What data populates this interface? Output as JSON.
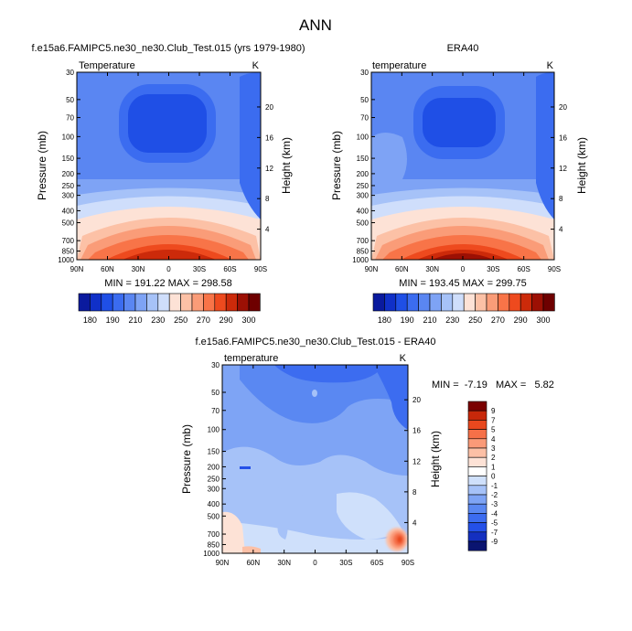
{
  "figure_title": "ANN",
  "colors": {
    "abs_palette": [
      "#0a1a9e",
      "#1030c8",
      "#1f4fe6",
      "#3b6cf0",
      "#5a86f2",
      "#7ea3f5",
      "#a6c2f8",
      "#cfdefb",
      "#fde2d6",
      "#fcc1a6",
      "#fa9c78",
      "#f87448",
      "#ee4a1e",
      "#cc2a0a",
      "#9c1004",
      "#6e0000"
    ],
    "diff_palette": [
      "#0a1470",
      "#1430c0",
      "#2450e8",
      "#3c6cf0",
      "#5a88f2",
      "#7ea4f5",
      "#a6c2f8",
      "#cfe0fb",
      "#ffffff",
      "#fde2d6",
      "#fcc0a6",
      "#fa9a78",
      "#f57048",
      "#e8481e",
      "#c8280a",
      "#7a0000"
    ]
  },
  "chart_data": [
    {
      "type": "heatmap",
      "title": "f.e15a6.FAMIPC5.ne30_ne30.Club_Test.015 (yrs 1979-1980)",
      "field_label": "Temperature",
      "units": "K",
      "ylabel": "Pressure (mb)",
      "y2label": "Height (km)",
      "x_ticks": [
        "90N",
        "60N",
        "30N",
        "0",
        "30S",
        "60S",
        "90S"
      ],
      "y_ticks": [
        "30",
        "50",
        "70",
        "100",
        "150",
        "200",
        "250",
        "300",
        "400",
        "500",
        "700",
        "850",
        "1000"
      ],
      "y2_ticks": [
        "20",
        "16",
        "12",
        "8",
        "4"
      ],
      "stats": "MIN = 191.22   MAX = 298.58",
      "colorbar_labels": [
        "180",
        "190",
        "210",
        "230",
        "250",
        "270",
        "290",
        "300"
      ]
    },
    {
      "type": "heatmap",
      "title": "ERA40",
      "field_label": "temperature",
      "units": "K",
      "ylabel": "Pressure (mb)",
      "y2label": "Height (km)",
      "x_ticks": [
        "90N",
        "60N",
        "30N",
        "0",
        "30S",
        "60S",
        "90S"
      ],
      "y_ticks": [
        "30",
        "50",
        "70",
        "100",
        "150",
        "200",
        "250",
        "300",
        "400",
        "500",
        "700",
        "850",
        "1000"
      ],
      "y2_ticks": [
        "20",
        "16",
        "12",
        "8",
        "4"
      ],
      "stats": "MIN = 193.45   MAX = 299.75",
      "colorbar_labels": [
        "180",
        "190",
        "210",
        "230",
        "250",
        "270",
        "290",
        "300"
      ]
    },
    {
      "type": "heatmap",
      "title": "f.e15a6.FAMIPC5.ne30_ne30.Club_Test.015 - ERA40",
      "field_label": "temperature",
      "units": "K",
      "ylabel": "Pressure (mb)",
      "y2label": "Height (km)",
      "x_ticks": [
        "90N",
        "60N",
        "30N",
        "0",
        "30S",
        "60S",
        "90S"
      ],
      "y_ticks": [
        "30",
        "50",
        "70",
        "100",
        "150",
        "200",
        "250",
        "300",
        "400",
        "500",
        "700",
        "850",
        "1000"
      ],
      "y2_ticks": [
        "20",
        "16",
        "12",
        "8",
        "4"
      ],
      "stats": "MIN =  -7.19   MAX =   5.82",
      "colorbar_labels": [
        "9",
        "7",
        "5",
        "4",
        "3",
        "2",
        "1",
        "0",
        "-1",
        "-2",
        "-3",
        "-4",
        "-5",
        "-7",
        "-9"
      ]
    }
  ]
}
